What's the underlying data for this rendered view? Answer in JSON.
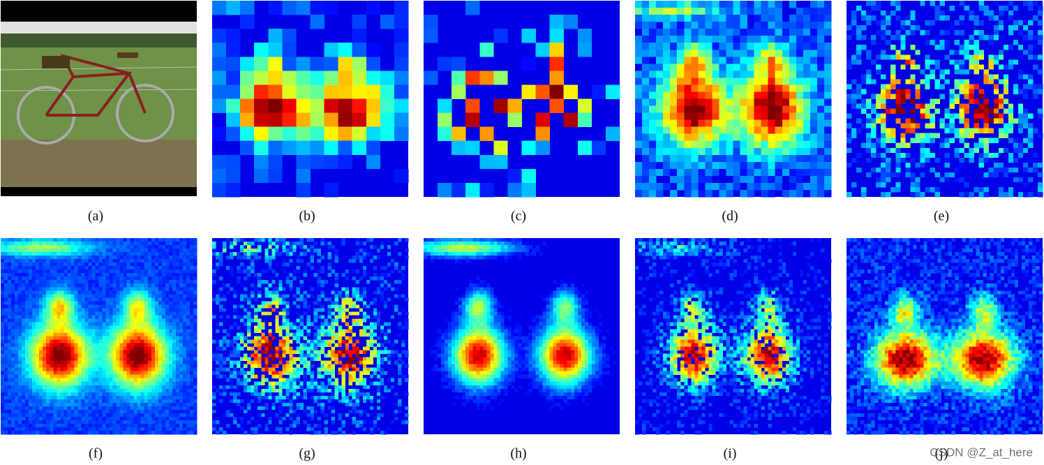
{
  "figure": {
    "captions": [
      "(a)",
      "(b)",
      "(c)",
      "(d)",
      "(e)",
      "(f)",
      "(g)",
      "(h)",
      "(i)",
      "(j)"
    ],
    "watermark": "CSDN @Z_at_here"
  }
}
